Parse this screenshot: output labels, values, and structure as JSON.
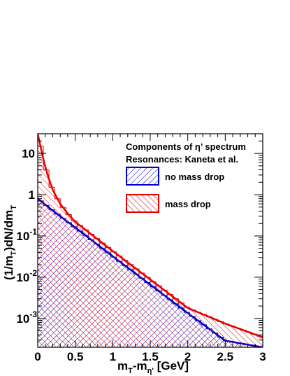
{
  "chart_data": {
    "type": "line",
    "title": "",
    "xlabel_parts": {
      "m": "m",
      "T_sub": "T",
      "dash": "-m",
      "eta_sub": "η'",
      "unit": " [GeV]"
    },
    "ylabel_parts": {
      "open": "(1/m",
      "T_sub1": "T",
      "mid": ")dN/dm",
      "T_sub2": "T"
    },
    "xlim": [
      0,
      3
    ],
    "ylim": [
      0.0002,
      30
    ],
    "y_scale": "log",
    "grid": false,
    "x_ticks": [
      {
        "value": 0,
        "label": "0"
      },
      {
        "value": 0.5,
        "label": "0.5"
      },
      {
        "value": 1,
        "label": "1"
      },
      {
        "value": 1.5,
        "label": "1.5"
      },
      {
        "value": 2,
        "label": "2"
      },
      {
        "value": 2.5,
        "label": "2.5"
      },
      {
        "value": 3,
        "label": "3"
      }
    ],
    "y_ticks": [
      {
        "value": 10,
        "base": "10",
        "exp": ""
      },
      {
        "value": 1,
        "base": "1",
        "exp": ""
      },
      {
        "value": 0.1,
        "base": "10",
        "exp": "-1"
      },
      {
        "value": 0.01,
        "base": "10",
        "exp": "-2"
      },
      {
        "value": 0.001,
        "base": "10",
        "exp": "-3"
      }
    ],
    "legend": {
      "placement": "top-right",
      "header_lines": [
        "Components of η’ spectrum",
        "Resonances: Kaneta et al."
      ],
      "entries": [
        "no mass drop",
        "mass drop"
      ]
    },
    "series": [
      {
        "name": "no mass drop",
        "color": "#0000cc",
        "fill": "hatched",
        "x": [
          0,
          0.25,
          0.5,
          1.0,
          1.5,
          2.0,
          2.5,
          3.0
        ],
        "y": [
          0.8,
          0.35,
          0.16,
          0.032,
          0.0066,
          0.00135,
          0.00029,
          0.0002
        ]
      },
      {
        "name": "mass drop",
        "color": "#e60000",
        "fill": "hatched",
        "x": [
          0,
          0.03,
          0.07,
          0.12,
          0.2,
          0.3,
          0.4,
          0.5,
          1.0,
          1.5,
          2.0,
          2.5,
          3.0
        ],
        "y": [
          30,
          17,
          8,
          3.5,
          1.3,
          0.6,
          0.35,
          0.22,
          0.043,
          0.0088,
          0.0018,
          0.00075,
          0.00035
        ]
      }
    ]
  }
}
